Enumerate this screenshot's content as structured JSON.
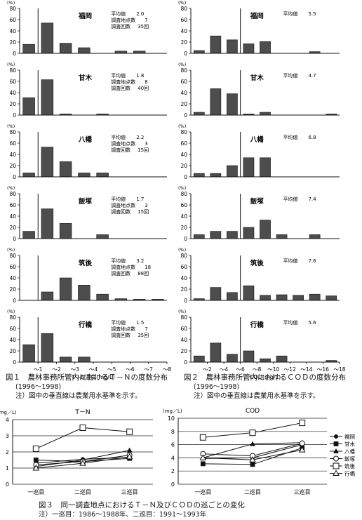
{
  "yunit": "(%)",
  "tn_stats_label": {
    "mean": "平均値",
    "points": "調査地点数",
    "times": "調査回数"
  },
  "tn": {
    "xlabel": "T－N濃度(mg/L)",
    "ticks": [
      "～1",
      "～2",
      "～3",
      "～4",
      "～5",
      "～6",
      "～7",
      "～8"
    ],
    "ylim": [
      0,
      80
    ],
    "yticks": [
      0,
      20,
      40,
      60,
      80
    ],
    "panels": [
      {
        "region": "福岡",
        "mean": "2.0",
        "points": "7",
        "times": "35回",
        "values": [
          16,
          54,
          18,
          10,
          0,
          4,
          4,
          0
        ]
      },
      {
        "region": "甘木",
        "mean": "1.8",
        "points": "8",
        "times": "40回",
        "values": [
          31,
          63,
          2,
          0,
          2,
          0,
          0,
          0
        ]
      },
      {
        "region": "八幡",
        "mean": "2.2",
        "points": "3",
        "times": "15回",
        "values": [
          7,
          53,
          27,
          7,
          7,
          0,
          0,
          0
        ]
      },
      {
        "region": "飯塚",
        "mean": "1.7",
        "points": "3",
        "times": "15回",
        "values": [
          13,
          53,
          27,
          0,
          7,
          0,
          0,
          0
        ]
      },
      {
        "region": "筑後",
        "mean": "3.2",
        "points": "18",
        "times": "88回",
        "values": [
          0,
          15,
          40,
          27,
          11,
          3,
          2,
          2
        ]
      },
      {
        "region": "行橋",
        "mean": "1.5",
        "points": "7",
        "times": "35回",
        "values": [
          31,
          51,
          9,
          9,
          0,
          0,
          0,
          0
        ]
      }
    ]
  },
  "cod": {
    "xlabel": "COD(mg/L)",
    "ticks": [
      "～2",
      "～4",
      "～6",
      "～8",
      "～10",
      "～12",
      "～14",
      "～16",
      "～18"
    ],
    "ylim": [
      0,
      80
    ],
    "yticks": [
      0,
      20,
      40,
      60,
      80
    ],
    "panels": [
      {
        "region": "福岡",
        "mean": "5.5",
        "values": [
          5,
          31,
          24,
          17,
          21,
          0,
          0,
          3,
          0
        ]
      },
      {
        "region": "甘木",
        "mean": "4.7",
        "values": [
          5,
          47,
          38,
          2,
          5,
          0,
          0,
          0,
          2
        ]
      },
      {
        "region": "八幡",
        "mean": "6.8",
        "values": [
          6,
          6,
          20,
          34,
          34,
          0,
          0,
          0,
          0
        ]
      },
      {
        "region": "飯塚",
        "mean": "7.4",
        "values": [
          7,
          13,
          13,
          20,
          33,
          7,
          0,
          7,
          0
        ]
      },
      {
        "region": "筑後",
        "mean": "7.6",
        "values": [
          3,
          23,
          14,
          26,
          9,
          10,
          9,
          11,
          8
        ]
      },
      {
        "region": "行橋",
        "mean": "5.6",
        "values": [
          11,
          34,
          14,
          20,
          6,
          11,
          0,
          0,
          3
        ]
      }
    ]
  },
  "captions": {
    "fig1": "図１　農林事務所管内におけるＴ－Ｎの度数分布",
    "fig1_years": "(1996～1998)",
    "fig1_note": "注）図中の垂直線は農業用水基準を示す。",
    "fig2": "図２　農林事務所管内におけるＣＯＤの度数分布",
    "fig2_years": "(1996～1998)",
    "fig2_note": "注）図中の垂直線は農業用水基準を示す。",
    "fig3": "図３　同一調査地点におけるＴ－Ｎ及びＣＯＤの巡ごとの変化",
    "fig3_note": "注）一巡目：1986～1988年、二巡目：1991～1993年"
  },
  "chart_data": [
    {
      "type": "line",
      "title": "T－N",
      "yunit": "(mg／L)",
      "categories": [
        "一巡目",
        "二巡目",
        "三巡目"
      ],
      "ylim": [
        0,
        4
      ],
      "yticks": [
        0,
        1,
        2,
        3,
        4
      ],
      "series": [
        {
          "name": "福岡",
          "marker": "dot",
          "values": [
            1.3,
            1.55,
            1.65
          ]
        },
        {
          "name": "甘木",
          "marker": "square",
          "values": [
            1.5,
            1.4,
            1.6
          ]
        },
        {
          "name": "八幡",
          "marker": "triangle",
          "values": [
            1.1,
            1.5,
            2.1
          ]
        },
        {
          "name": "飯塚",
          "marker": "circle",
          "values": [
            1.2,
            1.4,
            1.8
          ]
        },
        {
          "name": "筑後",
          "marker": "openSquare",
          "values": [
            2.2,
            3.5,
            3.25
          ]
        },
        {
          "name": "行橋",
          "marker": "openTriangle",
          "values": [
            1.0,
            1.3,
            1.7
          ]
        }
      ]
    },
    {
      "type": "line",
      "title": "COD",
      "yunit": "(mg／L)",
      "categories": [
        "一巡目",
        "二巡目",
        "三巡目"
      ],
      "ylim": [
        0,
        10
      ],
      "yticks": [
        0,
        2,
        4,
        6,
        8,
        10
      ],
      "series": [
        {
          "name": "福岡",
          "marker": "dot",
          "values": [
            3.9,
            4.0,
            6.0
          ]
        },
        {
          "name": "甘木",
          "marker": "square",
          "values": [
            3.1,
            3.0,
            5.5
          ]
        },
        {
          "name": "八幡",
          "marker": "triangle",
          "values": [
            4.0,
            6.1,
            6.3
          ]
        },
        {
          "name": "飯塚",
          "marker": "circle",
          "values": [
            4.6,
            4.3,
            6.2
          ]
        },
        {
          "name": "筑後",
          "marker": "openSquare",
          "values": [
            7.1,
            7.8,
            9.3
          ]
        },
        {
          "name": "行橋",
          "marker": "openTriangle",
          "values": [
            4.0,
            3.7,
            5.2
          ]
        }
      ]
    }
  ]
}
